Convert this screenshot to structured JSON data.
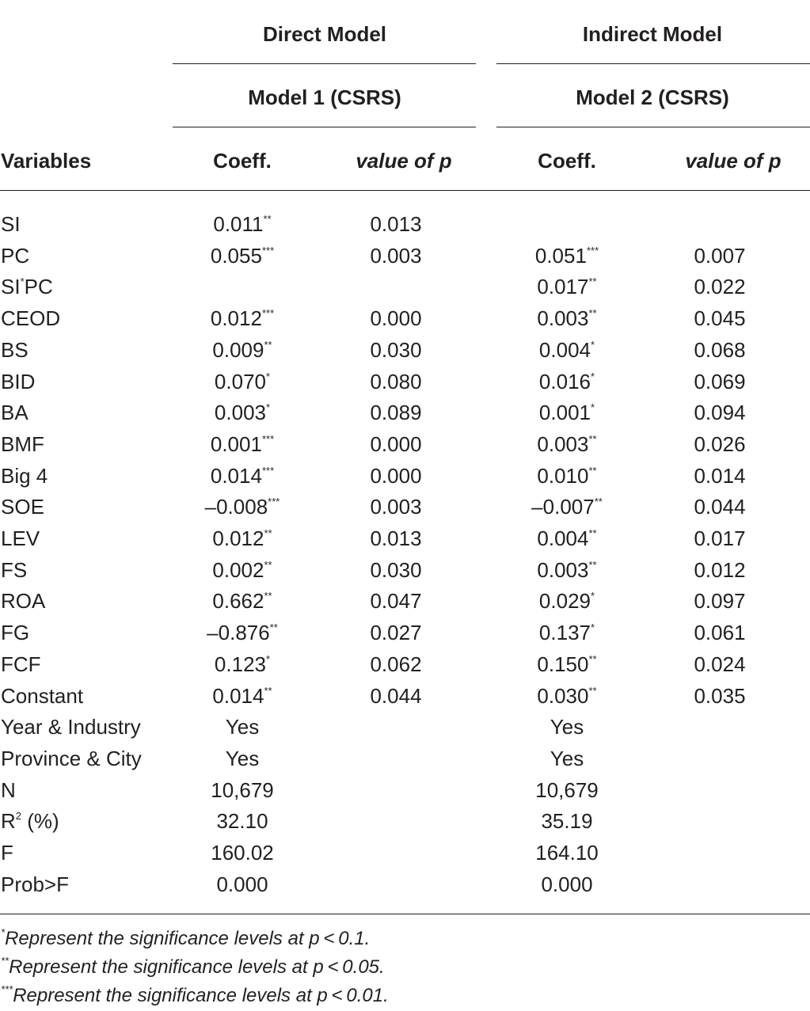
{
  "header": {
    "direct_model": "Direct Model",
    "indirect_model": "Indirect Model",
    "model1": "Model 1 (CSRS)",
    "model2": "Model 2 (CSRS)",
    "variables": "Variables",
    "coeff1": "Coeff.",
    "pval1": "value of p",
    "coeff2": "Coeff.",
    "pval2": "value of p"
  },
  "rows": [
    {
      "var": "SI",
      "var_sup": "",
      "var_rest": "",
      "c1": "0.011",
      "s1": "**",
      "p1": "0.013",
      "c2": "",
      "s2": "",
      "p2": ""
    },
    {
      "var": "PC",
      "var_sup": "",
      "var_rest": "",
      "c1": "0.055",
      "s1": "***",
      "p1": "0.003",
      "c2": "0.051",
      "s2": "***",
      "p2": "0.007"
    },
    {
      "var": "SI",
      "var_sup": "*",
      "var_rest": "PC",
      "c1": "",
      "s1": "",
      "p1": "",
      "c2": "0.017",
      "s2": "**",
      "p2": "0.022"
    },
    {
      "var": "CEOD",
      "var_sup": "",
      "var_rest": "",
      "c1": "0.012",
      "s1": "***",
      "p1": "0.000",
      "c2": "0.003",
      "s2": "**",
      "p2": "0.045"
    },
    {
      "var": "BS",
      "var_sup": "",
      "var_rest": "",
      "c1": "0.009",
      "s1": "**",
      "p1": "0.030",
      "c2": "0.004",
      "s2": "*",
      "p2": "0.068"
    },
    {
      "var": "BID",
      "var_sup": "",
      "var_rest": "",
      "c1": "0.070",
      "s1": "*",
      "p1": "0.080",
      "c2": "0.016",
      "s2": "*",
      "p2": "0.069"
    },
    {
      "var": "BA",
      "var_sup": "",
      "var_rest": "",
      "c1": "0.003",
      "s1": "*",
      "p1": "0.089",
      "c2": "0.001",
      "s2": "*",
      "p2": "0.094"
    },
    {
      "var": "BMF",
      "var_sup": "",
      "var_rest": "",
      "c1": "0.001",
      "s1": "***",
      "p1": "0.000",
      "c2": "0.003",
      "s2": "**",
      "p2": "0.026"
    },
    {
      "var": "Big 4",
      "var_sup": "",
      "var_rest": "",
      "c1": "0.014",
      "s1": "***",
      "p1": "0.000",
      "c2": "0.010",
      "s2": "**",
      "p2": "0.014"
    },
    {
      "var": "SOE",
      "var_sup": "",
      "var_rest": "",
      "c1": "–0.008",
      "s1": "***",
      "p1": "0.003",
      "c2": "–0.007",
      "s2": "**",
      "p2": "0.044"
    },
    {
      "var": "LEV",
      "var_sup": "",
      "var_rest": "",
      "c1": "0.012",
      "s1": "**",
      "p1": "0.013",
      "c2": "0.004",
      "s2": "**",
      "p2": "0.017"
    },
    {
      "var": "FS",
      "var_sup": "",
      "var_rest": "",
      "c1": "0.002",
      "s1": "**",
      "p1": "0.030",
      "c2": "0.003",
      "s2": "**",
      "p2": "0.012"
    },
    {
      "var": "ROA",
      "var_sup": "",
      "var_rest": "",
      "c1": "0.662",
      "s1": "**",
      "p1": "0.047",
      "c2": "0.029",
      "s2": "*",
      "p2": "0.097"
    },
    {
      "var": "FG",
      "var_sup": "",
      "var_rest": "",
      "c1": "–0.876",
      "s1": "**",
      "p1": "0.027",
      "c2": "0.137",
      "s2": "*",
      "p2": "0.061"
    },
    {
      "var": "FCF",
      "var_sup": "",
      "var_rest": "",
      "c1": "0.123",
      "s1": "*",
      "p1": "0.062",
      "c2": "0.150",
      "s2": "**",
      "p2": "0.024"
    },
    {
      "var": "Constant",
      "var_sup": "",
      "var_rest": "",
      "c1": "0.014",
      "s1": "**",
      "p1": "0.044",
      "c2": "0.030",
      "s2": "**",
      "p2": "0.035"
    },
    {
      "var": "Year & Industry",
      "var_sup": "",
      "var_rest": "",
      "c1": "Yes",
      "s1": "",
      "p1": "",
      "c2": "Yes",
      "s2": "",
      "p2": ""
    },
    {
      "var": "Province & City",
      "var_sup": "",
      "var_rest": "",
      "c1": "Yes",
      "s1": "",
      "p1": "",
      "c2": "Yes",
      "s2": "",
      "p2": ""
    },
    {
      "var": "N",
      "var_sup": "",
      "var_rest": "",
      "c1": "10,679",
      "s1": "",
      "p1": "",
      "c2": "10,679",
      "s2": "",
      "p2": ""
    },
    {
      "var": "R",
      "var_sup": "2",
      "var_rest": " (%)",
      "c1": "32.10",
      "s1": "",
      "p1": "",
      "c2": "35.19",
      "s2": "",
      "p2": ""
    },
    {
      "var": "F",
      "var_sup": "",
      "var_rest": "",
      "c1": "160.02",
      "s1": "",
      "p1": "",
      "c2": "164.10",
      "s2": "",
      "p2": ""
    },
    {
      "var": "Prob>F",
      "var_sup": "",
      "var_rest": "",
      "c1": "0.000",
      "s1": "",
      "p1": "",
      "c2": "0.000",
      "s2": "",
      "p2": ""
    }
  ],
  "notes": [
    {
      "sup": "*",
      "text": "Represent the significance levels at p < 0.1."
    },
    {
      "sup": "**",
      "text": "Represent the significance levels at p < 0.05."
    },
    {
      "sup": "***",
      "text": "Represent the significance levels at p < 0.01."
    }
  ]
}
